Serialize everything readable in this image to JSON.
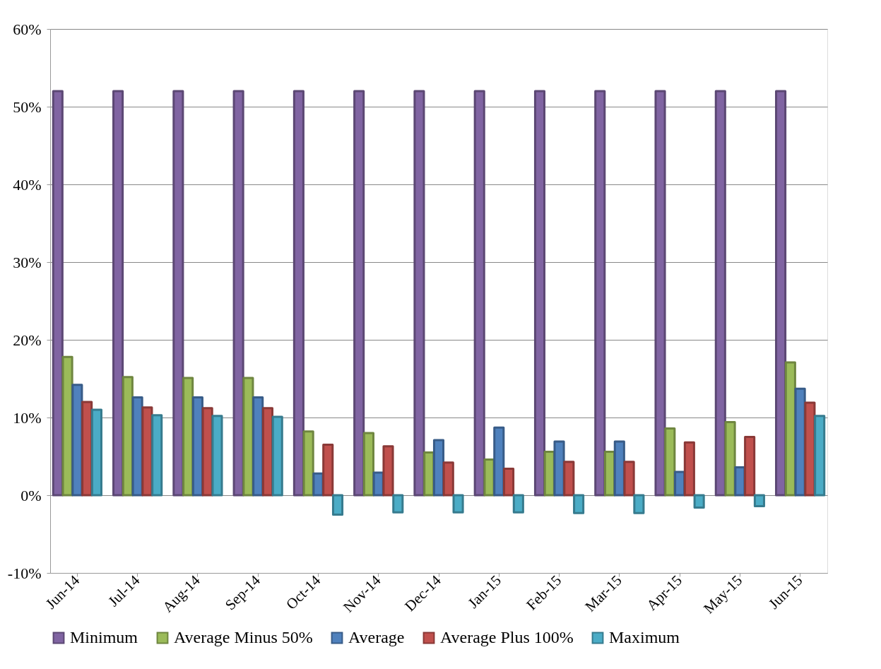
{
  "chart_data": {
    "type": "bar",
    "categories": [
      "Jun-14",
      "Jul-14",
      "Aug-14",
      "Sep-14",
      "Oct-14",
      "Nov-14",
      "Dec-14",
      "Jan-15",
      "Feb-15",
      "Mar-15",
      "Apr-15",
      "May-15",
      "Jun-15"
    ],
    "series": [
      {
        "name": "Minimum",
        "color": "#8064a2",
        "values": [
          52,
          52,
          52,
          52,
          52,
          52,
          52,
          52,
          52,
          52,
          52,
          52,
          52
        ]
      },
      {
        "name": "Average Minus 50%",
        "color": "#9bbb59",
        "values": [
          17.8,
          15.2,
          15.1,
          15.1,
          8.2,
          8.0,
          5.5,
          4.6,
          5.6,
          5.6,
          8.6,
          9.4,
          17.1
        ]
      },
      {
        "name": "Average",
        "color": "#4f81bd",
        "values": [
          14.2,
          12.6,
          12.6,
          12.6,
          2.8,
          2.9,
          7.1,
          8.7,
          6.9,
          6.9,
          3.0,
          3.6,
          13.7
        ]
      },
      {
        "name": "Average Plus 100%",
        "color": "#c0504d",
        "values": [
          12.0,
          11.3,
          11.2,
          11.2,
          6.5,
          6.3,
          4.2,
          3.4,
          4.3,
          4.3,
          6.8,
          7.5,
          11.9
        ]
      },
      {
        "name": "Maximum",
        "color": "#4bacc6",
        "values": [
          11.0,
          10.3,
          10.2,
          10.1,
          -2.5,
          -2.2,
          -2.2,
          -2.2,
          -2.3,
          -2.3,
          -1.6,
          -1.4,
          10.2
        ]
      }
    ],
    "ylim": [
      -10,
      60
    ],
    "yticks": [
      {
        "value": -10,
        "label": "-10%"
      },
      {
        "value": 0,
        "label": "0%"
      },
      {
        "value": 10,
        "label": "10%"
      },
      {
        "value": 20,
        "label": "20%"
      },
      {
        "value": 30,
        "label": "30%"
      },
      {
        "value": 40,
        "label": "40%"
      },
      {
        "value": 50,
        "label": "50%"
      },
      {
        "value": 60,
        "label": "60%"
      }
    ],
    "grid": "y",
    "legend": "bottom"
  }
}
